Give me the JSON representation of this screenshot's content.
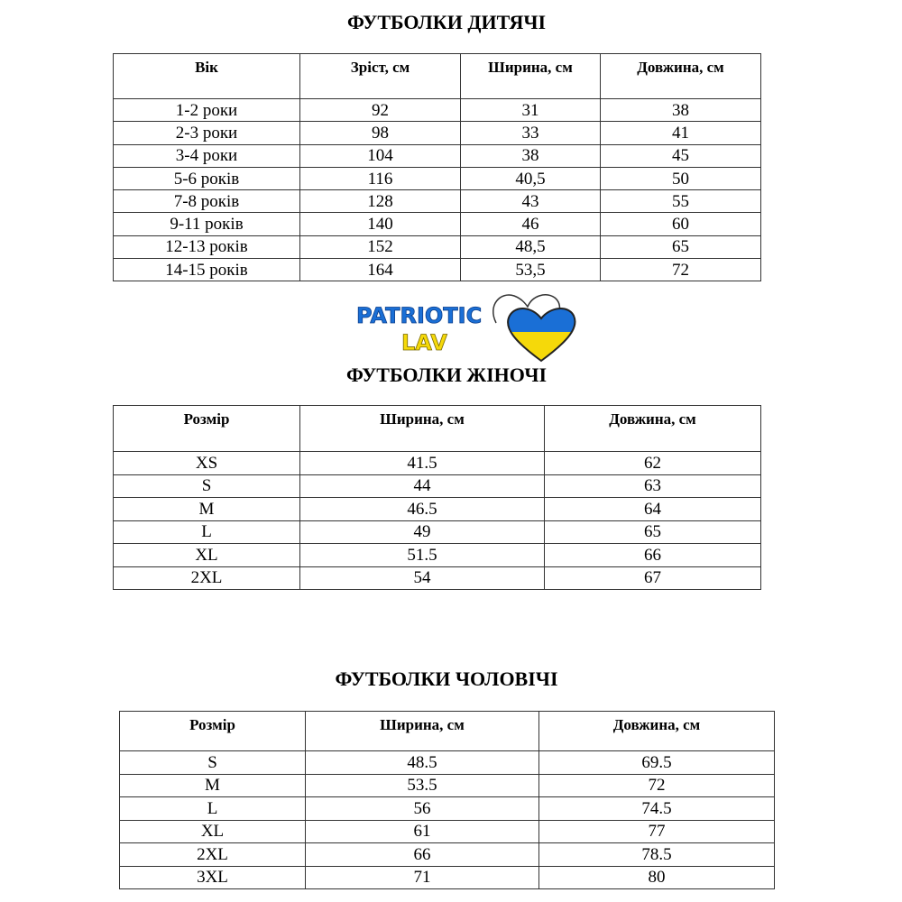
{
  "kids": {
    "title": "ФУТБОЛКИ ДИТЯЧІ",
    "headers": [
      "Вік",
      "Зріст, см",
      "Ширина, см",
      "Довжина, см"
    ],
    "rows": [
      [
        "1-2 роки",
        "92",
        "31",
        "38"
      ],
      [
        "2-3 роки",
        "98",
        "33",
        "41"
      ],
      [
        "3-4 роки",
        "104",
        "38",
        "45"
      ],
      [
        "5-6 років",
        "116",
        "40,5",
        "50"
      ],
      [
        "7-8 років",
        "128",
        "43",
        "55"
      ],
      [
        "9-11 років",
        "140",
        "46",
        "60"
      ],
      [
        "12-13 років",
        "152",
        "48,5",
        "65"
      ],
      [
        "14-15 років",
        "164",
        "53,5",
        "72"
      ]
    ]
  },
  "logo": {
    "line1": "PATRIOTIC",
    "line2": "LAV",
    "colors": {
      "blue": "#1a6fd6",
      "yellow": "#f5d90a"
    }
  },
  "women": {
    "title": "ФУТБОЛКИ ЖІНОЧІ",
    "headers": [
      "Розмір",
      "Ширина, см",
      "Довжина, см"
    ],
    "rows": [
      [
        "XS",
        "41.5",
        "62"
      ],
      [
        "S",
        "44",
        "63"
      ],
      [
        "M",
        "46.5",
        "64"
      ],
      [
        "L",
        "49",
        "65"
      ],
      [
        "XL",
        "51.5",
        "66"
      ],
      [
        "2XL",
        "54",
        "67"
      ]
    ]
  },
  "men": {
    "title": "ФУТБОЛКИ ЧОЛОВІЧІ",
    "headers": [
      "Розмір",
      "Ширина, см",
      "Довжина, см"
    ],
    "rows": [
      [
        "S",
        "48.5",
        "69.5"
      ],
      [
        "M",
        "53.5",
        "72"
      ],
      [
        "L",
        "56",
        "74.5"
      ],
      [
        "XL",
        "61",
        "77"
      ],
      [
        "2XL",
        "66",
        "78.5"
      ],
      [
        "3XL",
        "71",
        "80"
      ]
    ]
  }
}
